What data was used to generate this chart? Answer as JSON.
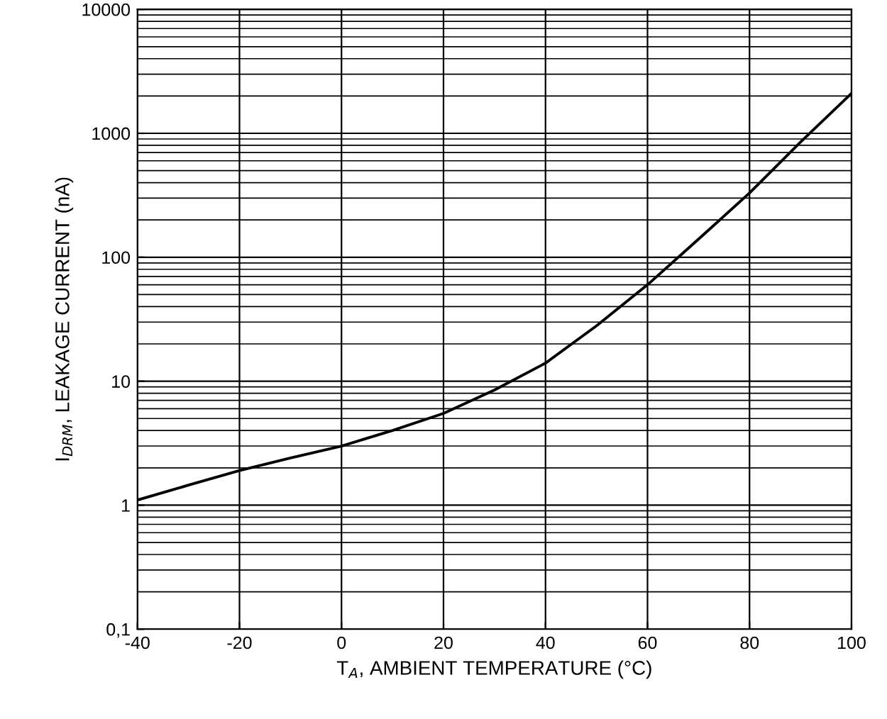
{
  "chart_data": {
    "type": "line",
    "xlabel": "T$_{A}$, AMBIENT TEMPERATURE (°C)",
    "ylabel": "I$_{DRM}$, LEAKAGE CURRENT (nA)",
    "log": "y",
    "grid": true,
    "marker": "none",
    "line_style": "solid",
    "x": [
      -40,
      -30,
      -20,
      -10,
      0,
      10,
      20,
      30,
      40,
      50,
      60,
      70,
      80,
      90,
      100
    ],
    "series": [
      {
        "color": "#000000",
        "values": [
          1.1,
          1.45,
          1.9,
          2.4,
          3.0,
          4.0,
          5.5,
          8.5,
          14,
          28,
          60,
          140,
          330,
          850,
          2100
        ]
      }
    ],
    "xlim": [
      -40,
      100
    ],
    "xticks": [
      -40,
      -20,
      0,
      20,
      40,
      60,
      80,
      100
    ],
    "ylim": [
      0.1,
      10000
    ],
    "yticks": [
      {
        "value": 0.1,
        "label": "0,1"
      },
      1,
      10,
      100,
      1000,
      10000
    ]
  }
}
